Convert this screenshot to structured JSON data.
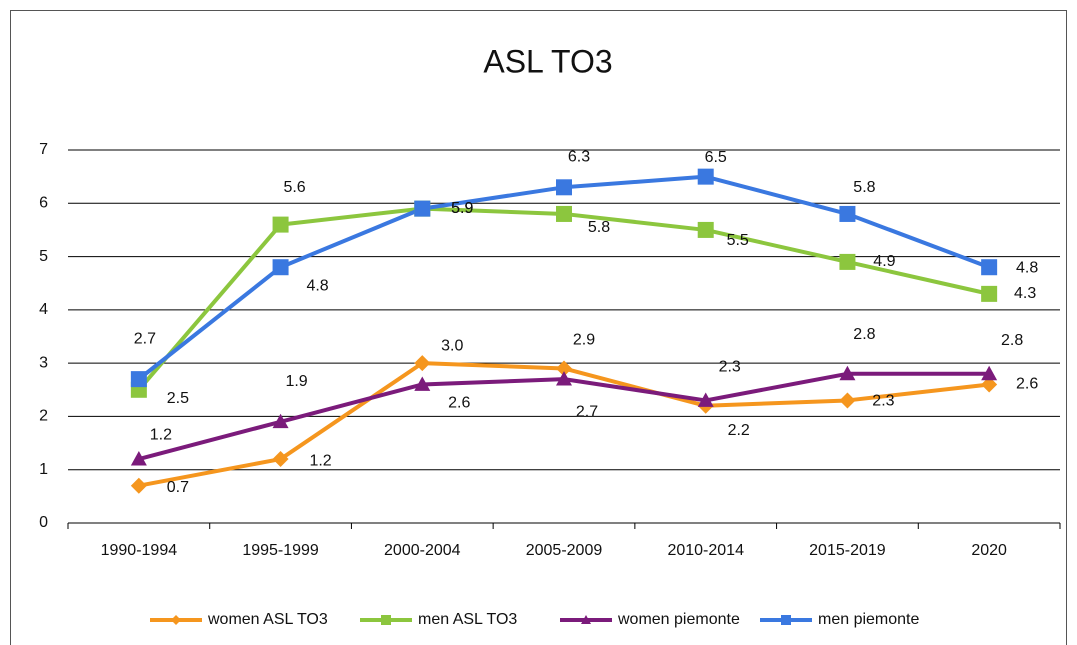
{
  "chart_data": {
    "type": "line",
    "title": "ASL TO3",
    "categories": [
      "1990-1994",
      "1995-1999",
      "2000-2004",
      "2005-2009",
      "2010-2014",
      "2015-2019",
      "2020"
    ],
    "ylim": [
      0,
      7
    ],
    "yticks": [
      0,
      1,
      2,
      3,
      4,
      5,
      6,
      7
    ],
    "grid": true,
    "legend": "bottom",
    "series": [
      {
        "name": "women ASL TO3",
        "color": "#f5961e",
        "marker": "diamond",
        "values": [
          0.7,
          1.2,
          3.0,
          2.9,
          2.2,
          2.3,
          2.6
        ],
        "value_labels": [
          "0.7",
          "1.2",
          "3.0",
          "2.9",
          "2.2",
          "2.3",
          "2.6"
        ]
      },
      {
        "name": "men ASL TO3",
        "color": "#8cc63e",
        "marker": "square",
        "values": [
          2.5,
          5.6,
          5.9,
          5.8,
          5.5,
          4.9,
          4.3
        ],
        "value_labels": [
          "2.5",
          "5.6",
          "5.9",
          "5.8",
          "5.5",
          "4.9",
          "4.3"
        ]
      },
      {
        "name": "women piemonte",
        "color": "#7b1b7b",
        "marker": "triangle",
        "values": [
          1.2,
          1.9,
          2.6,
          2.7,
          2.3,
          2.8,
          2.8
        ],
        "value_labels": [
          "1.2",
          "1.9",
          "2.6",
          "2.7",
          "2.3",
          "2.8",
          "2.8"
        ]
      },
      {
        "name": "men piemonte",
        "color": "#3a78e0",
        "marker": "square",
        "values": [
          2.7,
          4.8,
          5.9,
          6.3,
          6.5,
          5.8,
          4.8
        ],
        "value_labels": [
          "2.7",
          "4.8",
          "5.9",
          "6.3",
          "6.5",
          "5.8",
          "4.8"
        ]
      }
    ]
  }
}
